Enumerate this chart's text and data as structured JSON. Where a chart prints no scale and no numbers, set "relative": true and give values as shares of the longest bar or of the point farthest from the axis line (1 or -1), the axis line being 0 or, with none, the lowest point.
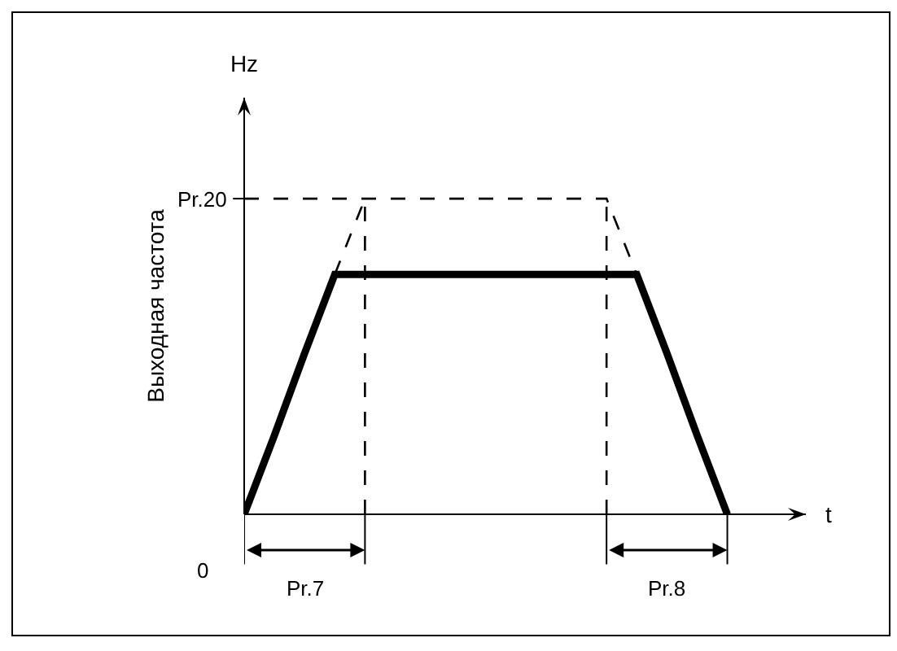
{
  "chart_data": {
    "type": "line",
    "relative": true,
    "title": "Hz",
    "xlabel": "t",
    "ylabel": "Выходная частота",
    "categories": [
      null,
      null,
      null,
      null,
      null,
      null,
      null,
      null,
      null,
      null,
      null,
      null,
      null,
      null,
      null,
      null,
      null,
      null,
      null
    ],
    "series": [
      {
        "color": "#000000",
        "line_style": "solid",
        "values": [
          0,
          0.25,
          0.51,
          0.76,
          0.76,
          0.76,
          0.76,
          0.76,
          0.76,
          0.76,
          0.76,
          0.76,
          0.76,
          0.76,
          0.51,
          0.25,
          0,
          null,
          null
        ]
      },
      {
        "color": "#000000",
        "line_style": "dashed",
        "values": [
          null,
          null,
          null,
          0.76,
          1,
          null,
          null,
          null,
          null,
          null,
          null,
          null,
          null,
          null,
          null,
          null,
          null,
          null,
          null
        ]
      },
      {
        "color": "#000000",
        "line_style": "dashed",
        "values": [
          1,
          1,
          1,
          1,
          1,
          1,
          1,
          1,
          1,
          1,
          1,
          1,
          1,
          0.76,
          null,
          null,
          null,
          null,
          null
        ]
      }
    ],
    "annotations": [
      "Pr.20",
      "0",
      "Pr.7",
      "Pr.8"
    ],
    "grid": false,
    "marker": "none"
  }
}
